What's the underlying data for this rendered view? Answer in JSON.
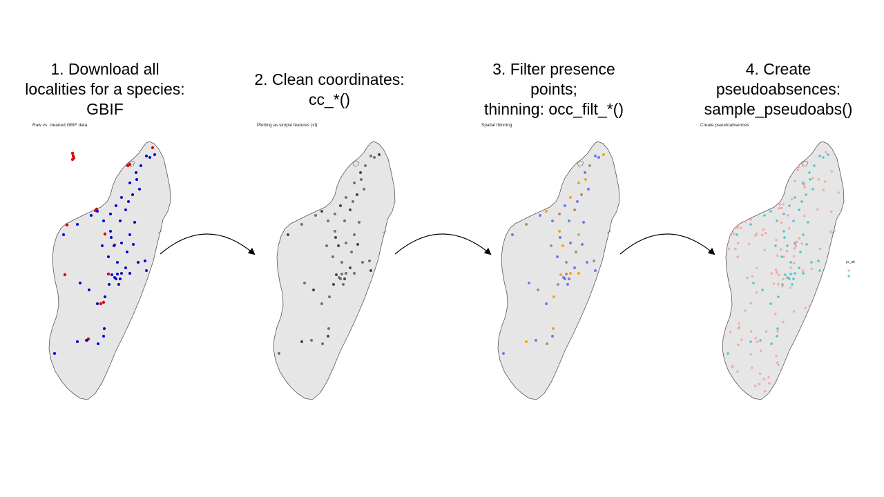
{
  "steps": [
    {
      "title_lines": [
        "1. Download all",
        "localities for a species:",
        "GBIF"
      ],
      "caption": "Raw vs. cleaned GBIF data"
    },
    {
      "title_lines": [
        "2. Clean coordinates:",
        "cc_*()"
      ],
      "caption": "Plotting as simple features (sf)"
    },
    {
      "title_lines": [
        "3. Filter presence",
        "points;",
        "thinning: occ_filt_*()"
      ],
      "caption": "Spatial thinning"
    },
    {
      "title_lines": [
        "4. Create",
        "pseudoabsences:",
        "sample_pseudoabs()"
      ],
      "caption": "Create pseudoabsences"
    }
  ],
  "legend": {
    "title": "pr_ab"
  },
  "colors": {
    "land": "#e6e6e6",
    "outline": "#555555",
    "raw_points": "#e00000",
    "clean_points": "#0000d0",
    "plain_points": "#333333",
    "kept_points": "#6a6ae6",
    "thinned_brown": "#b08060",
    "thinned_orange": "#f0a000",
    "absence": "#f0a8a0",
    "presence": "#4ec6cc",
    "arrow": "#000000"
  }
}
